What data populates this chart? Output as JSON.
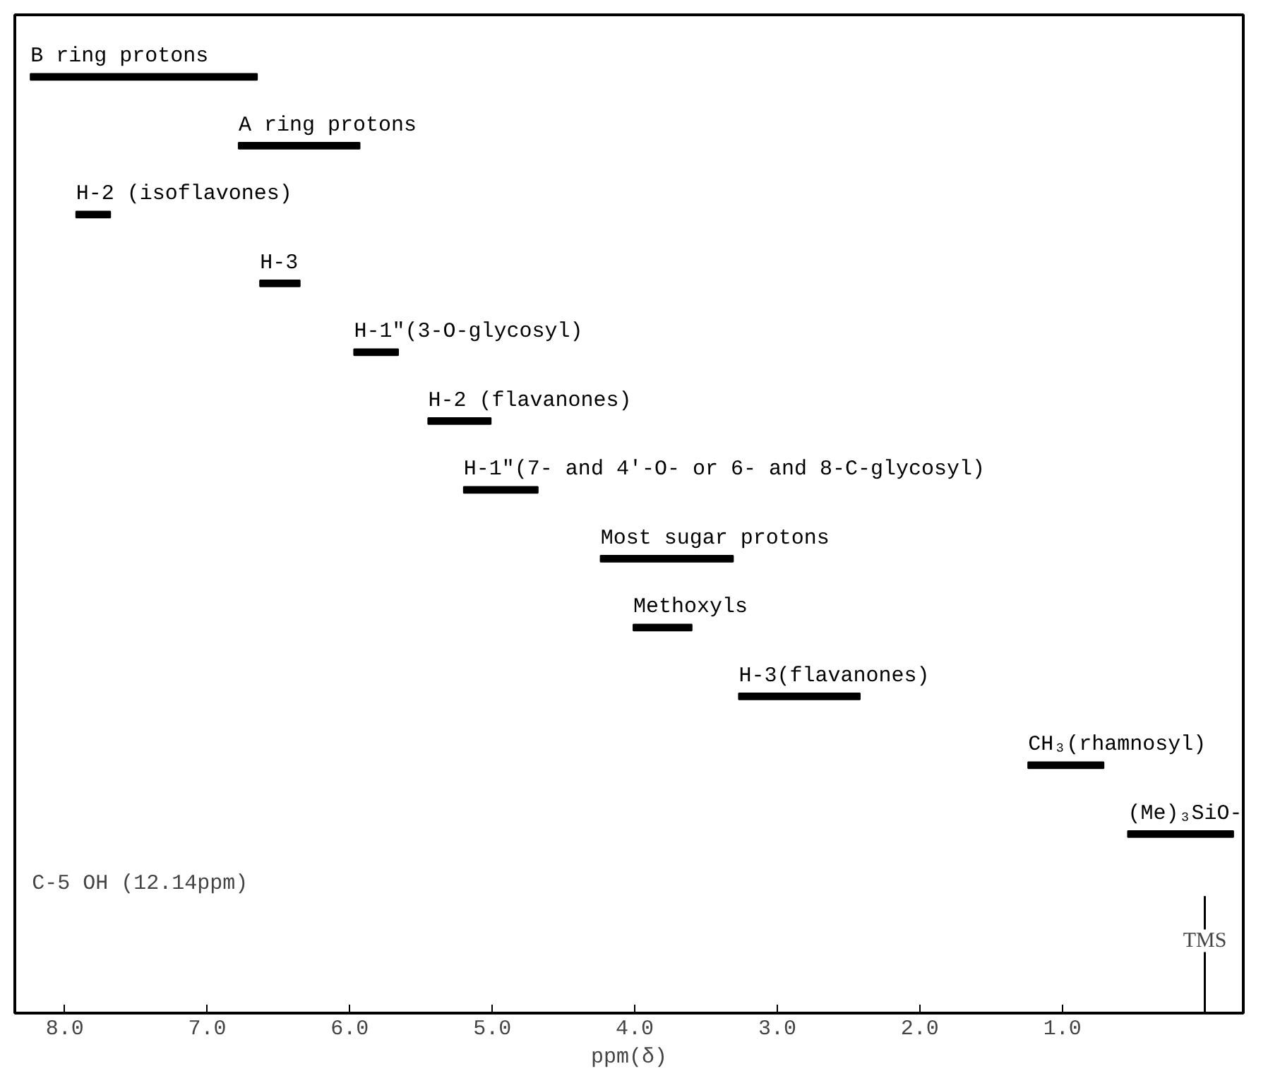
{
  "chart_data": {
    "type": "bar",
    "orientation": "horizontal",
    "xlabel": "ppm(δ)",
    "categories": [
      "B ring protons",
      "A ring protons",
      "H-2 (isoflavones)",
      "H-3",
      "H-1\"(3-O-glycosyl)",
      "H-2 (flavanones)",
      "H-1\"(7- and 4'-O- or 6- and 8-C-glycosyl)",
      "Most sugar protons",
      "Methoxyls",
      "H-3(flavanones)",
      "CH₃(rhamnosyl)",
      "(Me)₃SiO-"
    ],
    "base": [
      6.65,
      5.93,
      7.68,
      6.35,
      5.66,
      5.01,
      4.68,
      3.31,
      3.6,
      2.42,
      0.71,
      -0.2
    ],
    "values": [
      1.59,
      0.85,
      0.24,
      0.28,
      0.31,
      0.44,
      0.52,
      0.93,
      0.41,
      0.85,
      0.53,
      0.74
    ],
    "color": "#000000",
    "xlim": [
      8.35,
      -0.27
    ],
    "xticks": [
      {
        "value": 8,
        "label": "8.0"
      },
      {
        "value": 7,
        "label": "7.0"
      },
      {
        "value": 6,
        "label": "6.0"
      },
      {
        "value": 5,
        "label": "5.0"
      },
      {
        "value": 4,
        "label": "4.0"
      },
      {
        "value": 3,
        "label": "3.0"
      },
      {
        "value": 2,
        "label": "2.0"
      },
      {
        "value": 1,
        "label": "1.0"
      }
    ],
    "ref_lines": [
      {
        "axis": "x",
        "value": 0,
        "label": "TMS"
      }
    ],
    "annotations": [
      "C-5 OH (12.14ppm)"
    ],
    "tick_labels": "x",
    "grid": false
  }
}
